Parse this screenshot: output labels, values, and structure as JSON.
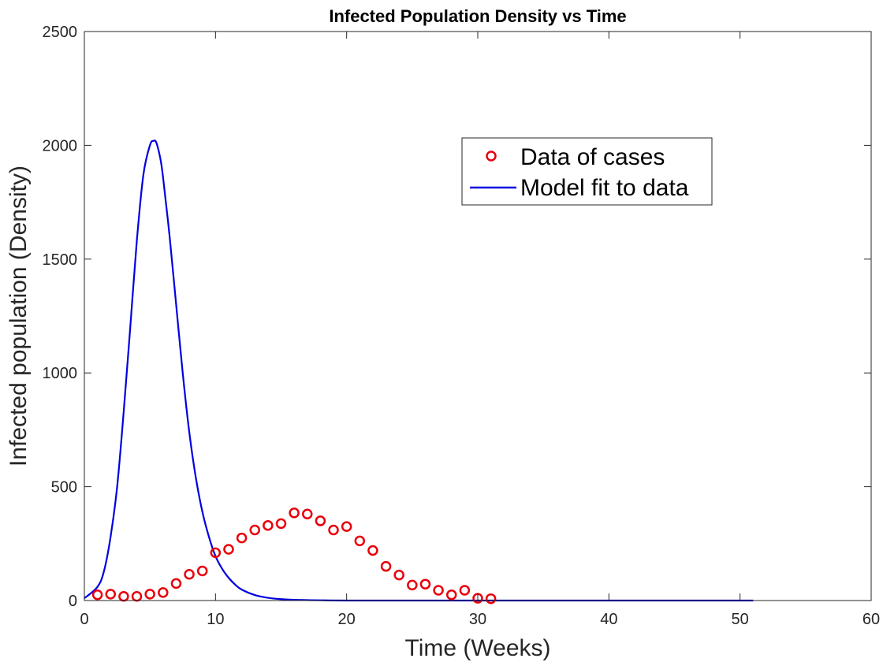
{
  "chart_data": {
    "type": "line",
    "title": "Infected Population Density vs Time",
    "xlabel": "Time (Weeks)",
    "ylabel": "Infected population (Density)",
    "xlim": [
      0,
      60
    ],
    "ylim": [
      0,
      2500
    ],
    "xticks": [
      0,
      10,
      20,
      30,
      40,
      50,
      60
    ],
    "yticks": [
      0,
      500,
      1000,
      1500,
      2000,
      2500
    ],
    "xtick_labels": [
      "0",
      "10",
      "20",
      "30",
      "40",
      "50",
      "60"
    ],
    "ytick_labels": [
      "0",
      "500",
      "1000",
      "1500",
      "2000",
      "2500"
    ],
    "grid": false,
    "legend_position": "upper-right",
    "series": [
      {
        "name": "Data of cases",
        "style": "markers",
        "marker": "circle",
        "color": "#e8000b",
        "x": [
          1,
          2,
          3,
          4,
          5,
          6,
          7,
          8,
          9,
          10,
          11,
          12,
          13,
          14,
          15,
          16,
          17,
          18,
          19,
          20,
          21,
          22,
          23,
          24,
          25,
          26,
          27,
          28,
          29,
          30,
          31
        ],
        "y": [
          25,
          28,
          18,
          18,
          28,
          35,
          75,
          115,
          130,
          210,
          225,
          275,
          310,
          330,
          338,
          385,
          380,
          350,
          310,
          325,
          262,
          220,
          150,
          112,
          68,
          72,
          45,
          25,
          45,
          10,
          8
        ]
      },
      {
        "name": "Model fit to data",
        "style": "line",
        "color": "#0000e0",
        "x": [
          0,
          1,
          1.5,
          2,
          2.5,
          3,
          3.5,
          4,
          4.5,
          5,
          5.3,
          5.5,
          5.8,
          6,
          6.5,
          7,
          7.5,
          8,
          8.5,
          9,
          9.5,
          10,
          10.5,
          11,
          11.5,
          12,
          13,
          14,
          15,
          16,
          18,
          20,
          25,
          30,
          40,
          51
        ],
        "y": [
          10,
          60,
          130,
          280,
          500,
          830,
          1200,
          1580,
          1870,
          2000,
          2020,
          2010,
          1940,
          1860,
          1600,
          1300,
          1000,
          740,
          540,
          390,
          280,
          195,
          140,
          100,
          70,
          48,
          24,
          12,
          6,
          3,
          1,
          0,
          0,
          0,
          0,
          0
        ]
      }
    ]
  }
}
